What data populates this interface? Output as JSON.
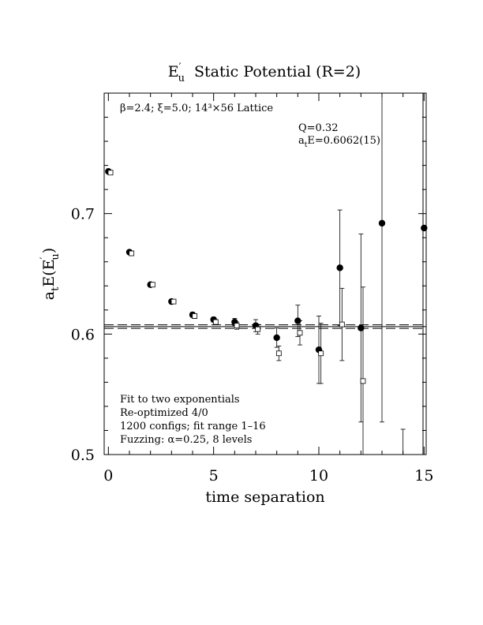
{
  "chart_data": {
    "type": "scatter",
    "title": "E′u  Static Potential (R=2)",
    "title_main": "E",
    "title_sup": "′",
    "title_sub": "u",
    "title_rest": "Static Potential (R=2)",
    "xlabel": "time separation",
    "ylabel": "a_tE(E′u)",
    "ylabel_a": "a",
    "ylabel_t": "t",
    "ylabel_mid": "E(E",
    "ylabel_prime": "′",
    "ylabel_u": "u",
    "ylabel_close": ")",
    "xlim": [
      -0.2,
      15.1
    ],
    "ylim": [
      0.5,
      0.8
    ],
    "x_ticks": [
      "0",
      "5",
      "10",
      "15"
    ],
    "y_ticks": [
      "0.5",
      "0.6",
      "0.7"
    ],
    "annotation_lattice": "β=2.4; ξ=5.0; 14³×56 Lattice",
    "annotation_q": "Q=0.32",
    "annotation_e_prefix": "a",
    "annotation_e_sub": "t",
    "annotation_e_rest": "E=0.6062(15)",
    "notes": [
      "Fit to two exponentials",
      "Re-optimized 4/0",
      "1200 configs; fit range 1–16",
      "Fuzzing: α=0.25, 8 levels"
    ],
    "fit": {
      "value": 0.6062,
      "error": 0.0015
    },
    "series": [
      {
        "marker": "filled-circle",
        "points": [
          {
            "x": 0,
            "y": 0.735,
            "err": 0.001
          },
          {
            "x": 1,
            "y": 0.668,
            "err": 0.001
          },
          {
            "x": 2,
            "y": 0.641,
            "err": 0.001
          },
          {
            "x": 3,
            "y": 0.627,
            "err": 0.001
          },
          {
            "x": 4,
            "y": 0.616,
            "err": 0.002
          },
          {
            "x": 5,
            "y": 0.612,
            "err": 0.002
          },
          {
            "x": 6,
            "y": 0.61,
            "err": 0.003
          },
          {
            "x": 7,
            "y": 0.607,
            "err": 0.005
          },
          {
            "x": 8,
            "y": 0.597,
            "err": 0.008
          },
          {
            "x": 9,
            "y": 0.611,
            "err": 0.013
          },
          {
            "x": 10,
            "y": 0.587,
            "err": 0.028
          },
          {
            "x": 11,
            "y": 0.655,
            "err": 0.048
          },
          {
            "x": 12,
            "y": 0.605,
            "err": 0.078
          },
          {
            "x": 13,
            "y": 0.692,
            "err": 0.165
          },
          {
            "x": 15,
            "y": 0.688,
            "err": 0.0
          }
        ]
      },
      {
        "marker": "open-square",
        "points": [
          {
            "x": 0.1,
            "y": 0.734,
            "err": 0.001
          },
          {
            "x": 1.1,
            "y": 0.667,
            "err": 0.001
          },
          {
            "x": 2.1,
            "y": 0.641,
            "err": 0.001
          },
          {
            "x": 3.1,
            "y": 0.627,
            "err": 0.001
          },
          {
            "x": 4.1,
            "y": 0.615,
            "err": 0.002
          },
          {
            "x": 5.1,
            "y": 0.61,
            "err": 0.002
          },
          {
            "x": 6.1,
            "y": 0.607,
            "err": 0.003
          },
          {
            "x": 7.1,
            "y": 0.604,
            "err": 0.004
          },
          {
            "x": 8.1,
            "y": 0.584,
            "err": 0.006
          },
          {
            "x": 9.1,
            "y": 0.601,
            "err": 0.01
          },
          {
            "x": 10.1,
            "y": 0.584,
            "err": 0.025
          },
          {
            "x": 11.1,
            "y": 0.608,
            "err": 0.03
          },
          {
            "x": 12.1,
            "y": 0.561,
            "err": 0.078
          },
          {
            "x": 14.0,
            "y": 0.5,
            "err": 0.021
          }
        ]
      }
    ]
  }
}
